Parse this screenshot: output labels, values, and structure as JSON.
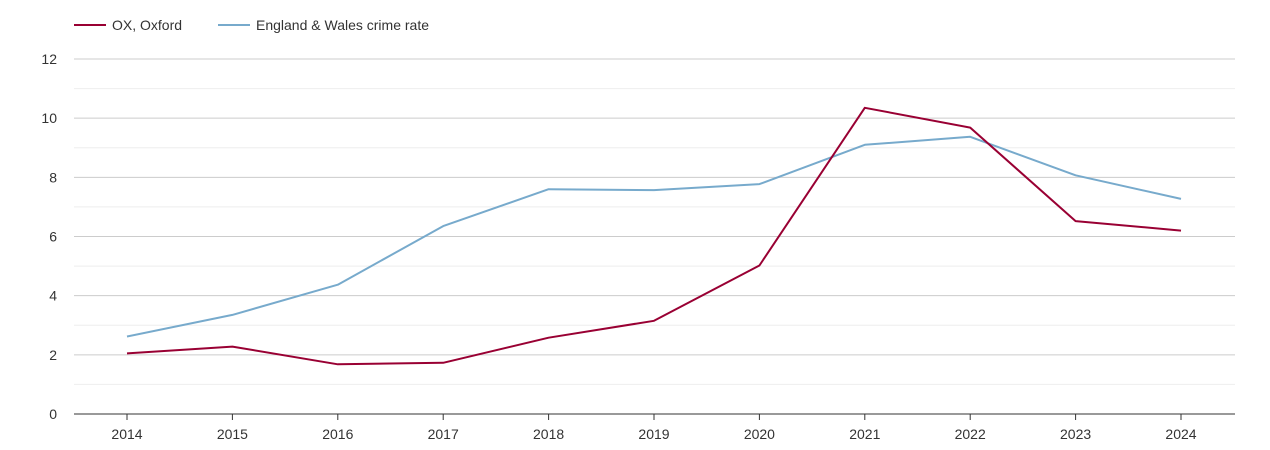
{
  "chart_data": {
    "type": "line",
    "title": "",
    "xlabel": "",
    "ylabel": "",
    "categories": [
      "2014",
      "2015",
      "2016",
      "2017",
      "2018",
      "2019",
      "2020",
      "2021",
      "2022",
      "2023",
      "2024"
    ],
    "ylim": [
      0,
      12
    ],
    "yticks": [
      "0",
      "2",
      "4",
      "6",
      "8",
      "10",
      "12"
    ],
    "legend_position": "top-left",
    "grid": true,
    "series": [
      {
        "name": "OX, Oxford",
        "color": "#990033",
        "values": [
          2.05,
          2.28,
          1.68,
          1.73,
          2.58,
          3.15,
          5.02,
          10.35,
          9.68,
          6.52,
          6.2
        ]
      },
      {
        "name": "England & Wales crime rate",
        "color": "#77aacc",
        "values": [
          2.62,
          3.35,
          4.37,
          6.35,
          7.6,
          7.57,
          7.77,
          9.1,
          9.37,
          8.07,
          7.27
        ]
      }
    ]
  }
}
